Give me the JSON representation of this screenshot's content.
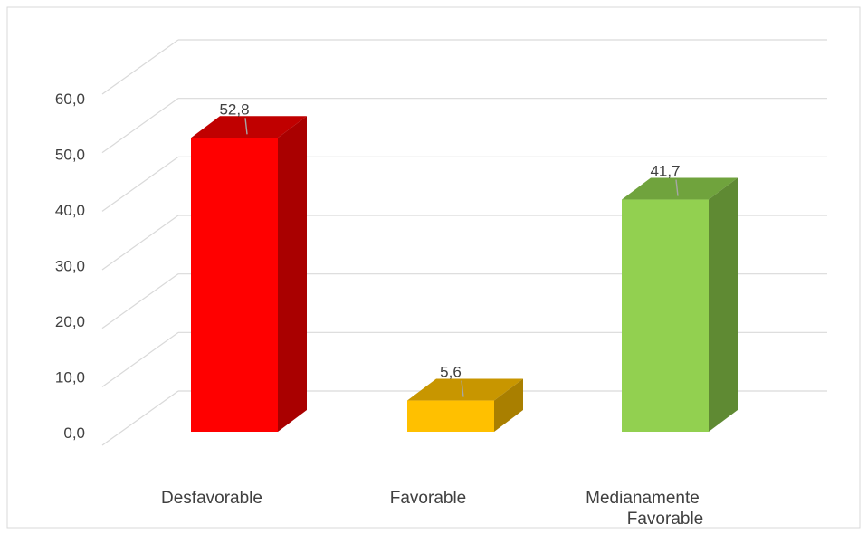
{
  "chart_data": {
    "type": "bar",
    "categories": [
      "Desfavorable",
      "Favorable",
      "Medianamente Favorable"
    ],
    "category_lines": [
      [
        "Desfavorable"
      ],
      [
        "Favorable"
      ],
      [
        "Medianamente",
        "Favorable"
      ]
    ],
    "values": [
      52.8,
      5.6,
      41.7
    ],
    "data_labels": [
      "52,8",
      "5,6",
      "41,7"
    ],
    "ylim": [
      0,
      60
    ],
    "yticks": [
      0,
      10,
      20,
      30,
      40,
      50,
      60
    ],
    "ytick_labels": [
      "0,0",
      "10,0",
      "20,0",
      "30,0",
      "40,0",
      "50,0",
      "60,0"
    ],
    "title": "",
    "xlabel": "",
    "ylabel": "",
    "grid": true,
    "legend": "none",
    "three_d": true,
    "colors": {
      "front": [
        "#ff0000",
        "#ffc000",
        "#92d050"
      ],
      "side": [
        "#a90000",
        "#a97f00",
        "#5f8a33"
      ],
      "top": [
        "#c00000",
        "#c89600",
        "#70a33d"
      ]
    }
  }
}
